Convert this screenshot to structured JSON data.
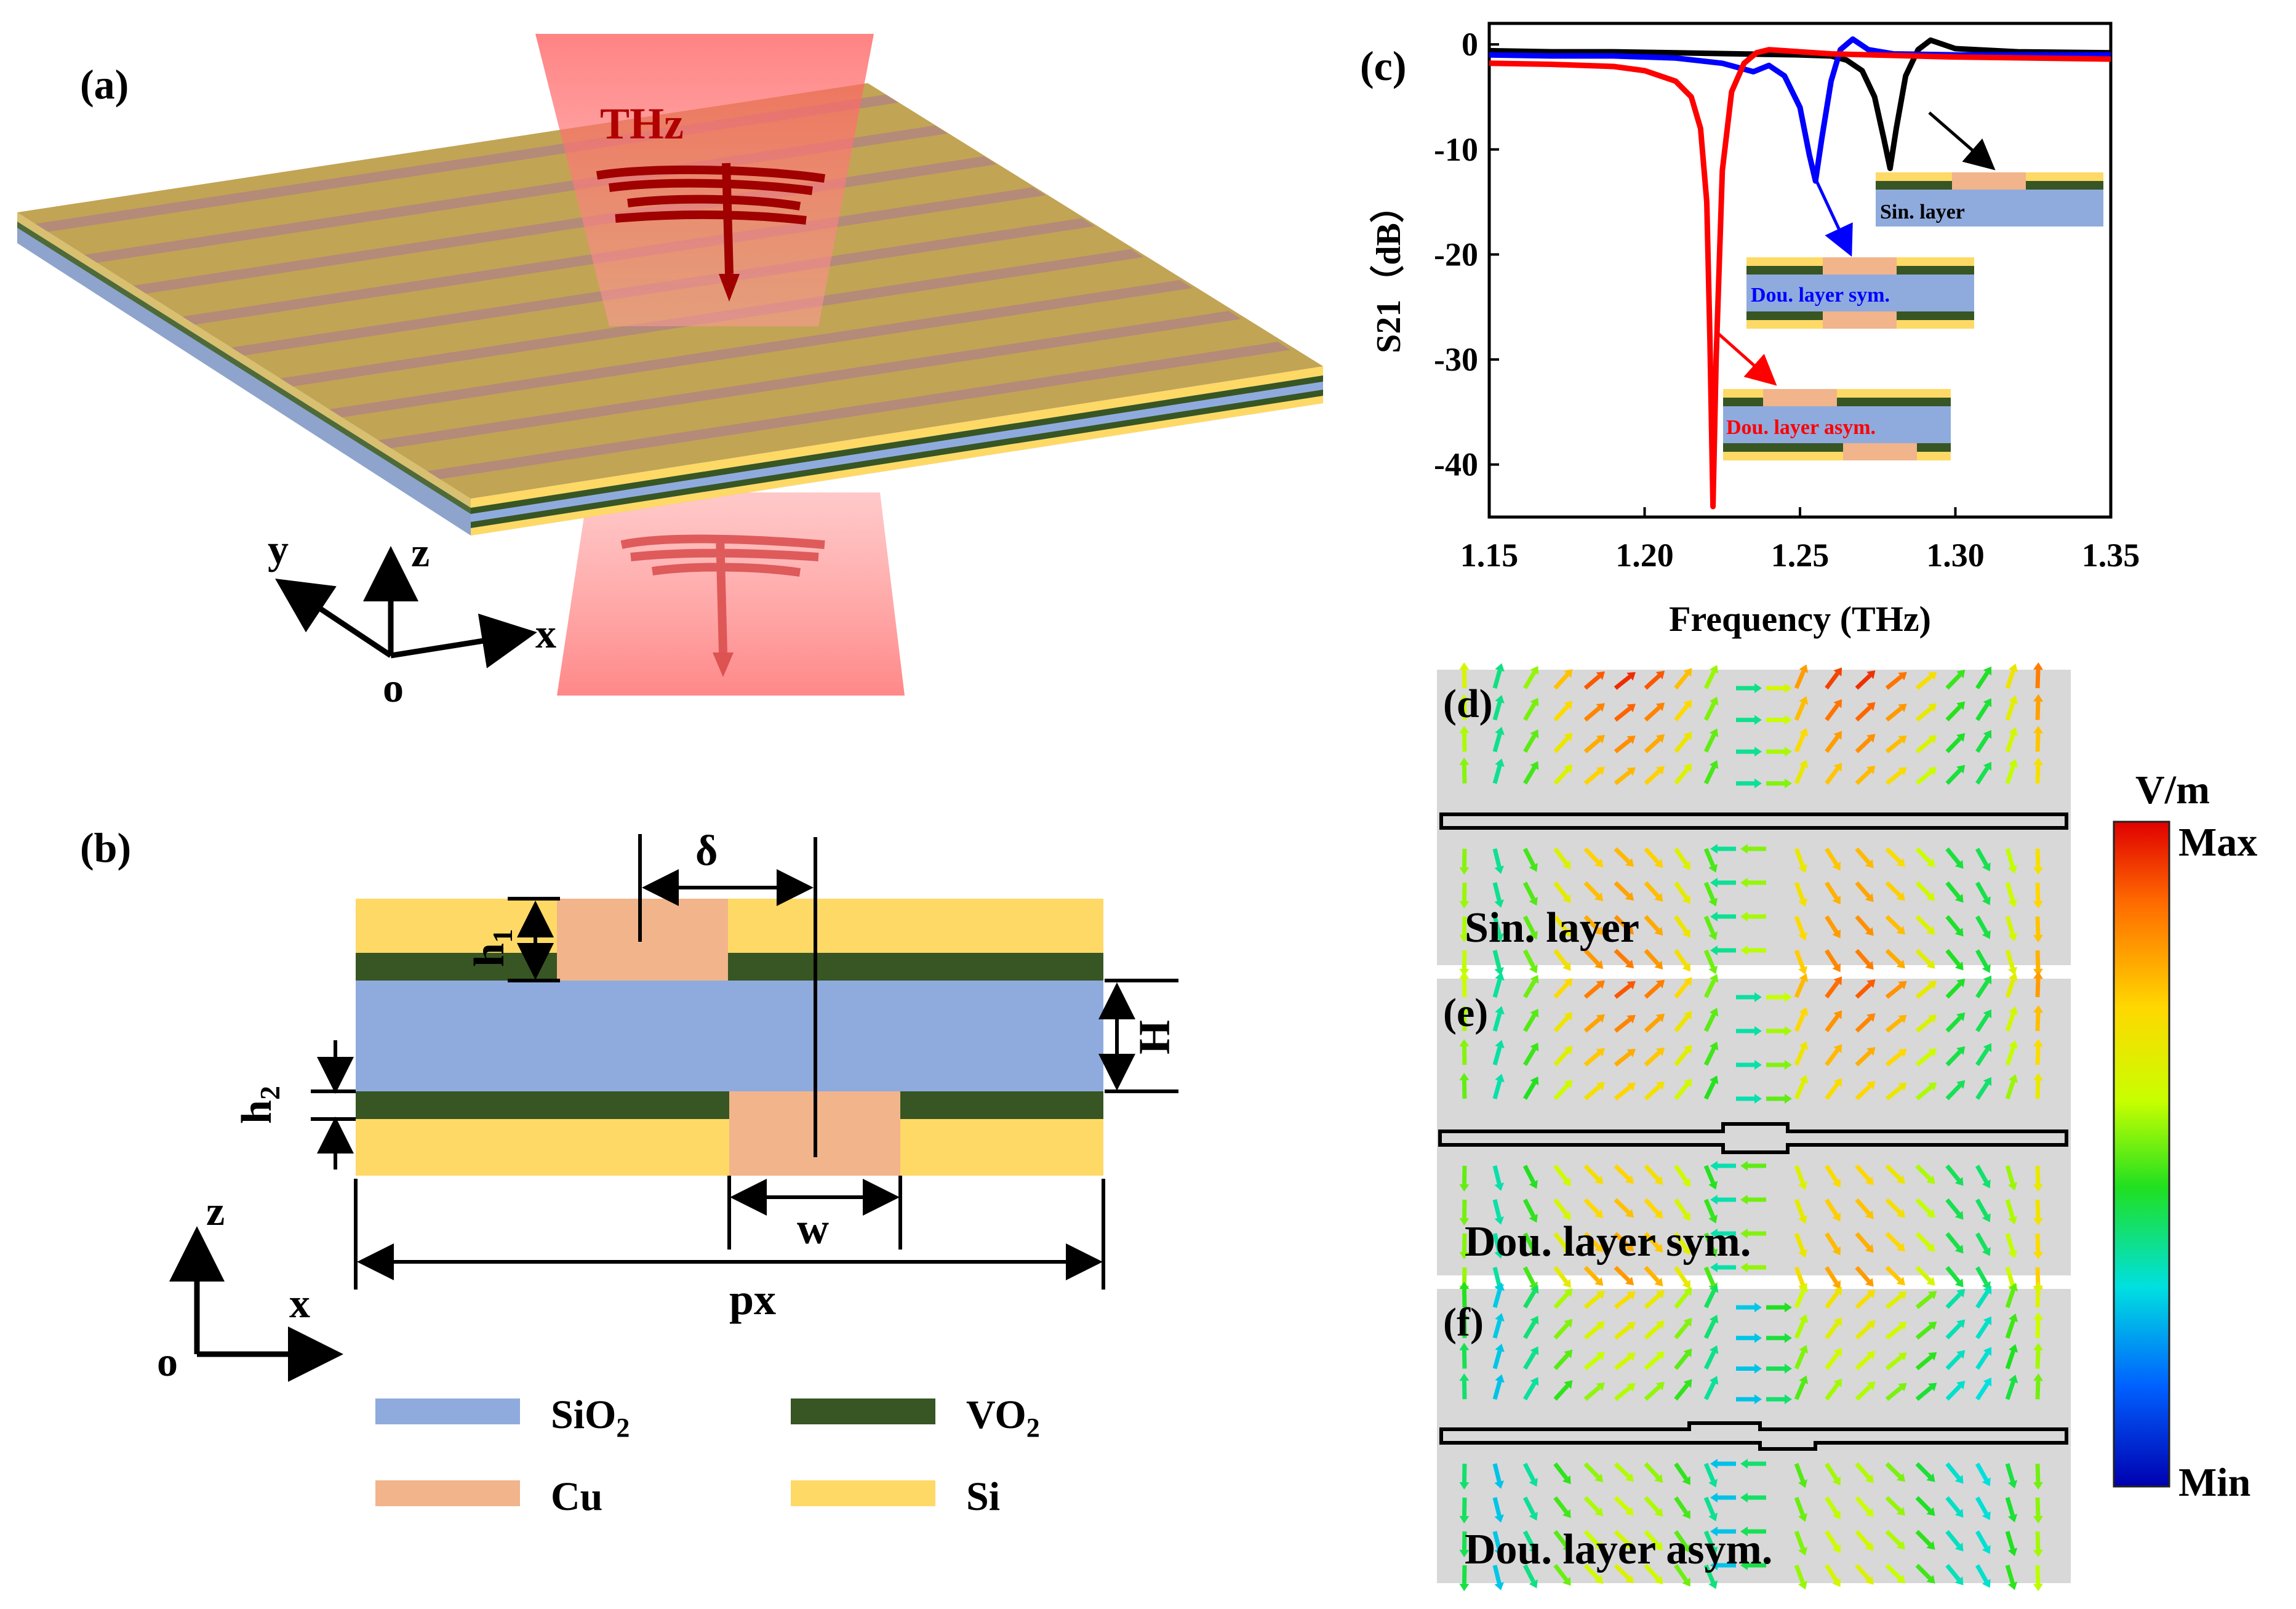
{
  "panels": {
    "a": {
      "label": "(a)",
      "beam_label": "THz",
      "axes": {
        "x": "x",
        "y": "y",
        "z": "z",
        "origin": "o"
      }
    },
    "b": {
      "label": "(b)",
      "dims": {
        "delta": "δ",
        "h1": "h",
        "h1_sub": "1",
        "h2": "h",
        "h2_sub": "2",
        "H": "H",
        "w": "w",
        "px": "px"
      },
      "axes": {
        "x": "x",
        "z": "z",
        "origin": "o"
      },
      "legend": [
        {
          "name": "SiO",
          "sub": "2",
          "color": "#8fabde"
        },
        {
          "name": "VO",
          "sub": "2",
          "color": "#375623"
        },
        {
          "name": "Cu",
          "sub": "",
          "color": "#f2b48a"
        },
        {
          "name": "Si",
          "sub": "",
          "color": "#ffd966"
        }
      ]
    },
    "c": {
      "label": "(c)",
      "insets": {
        "single": "Sin. layer",
        "sym": "Dou. layer sym.",
        "asym": "Dou. layer asym."
      }
    },
    "d": {
      "label": "(d)",
      "caption": "Sin. layer"
    },
    "e": {
      "label": "(e)",
      "caption": "Dou. layer sym."
    },
    "f": {
      "label": "(f)",
      "caption": "Dou. layer asym."
    },
    "colorbar": {
      "unit": "V/m",
      "max": "Max",
      "min": "Min"
    }
  },
  "chart_data": {
    "type": "line",
    "title": "",
    "xlabel": "Frequency (THz)",
    "ylabel": "S21（dB）",
    "xlim": [
      1.15,
      1.35
    ],
    "ylim": [
      -45,
      2
    ],
    "xticks": [
      "1.15",
      "1.20",
      "1.25",
      "1.30",
      "1.35"
    ],
    "yticks": [
      "0",
      "-10",
      "-20",
      "-30",
      "-40"
    ],
    "series": [
      {
        "name": "Sin. layer",
        "color": "#000000",
        "x": [
          1.15,
          1.17,
          1.19,
          1.21,
          1.23,
          1.25,
          1.26,
          1.265,
          1.27,
          1.274,
          1.277,
          1.279,
          1.281,
          1.284,
          1.288,
          1.292,
          1.3,
          1.32,
          1.35
        ],
        "y": [
          -0.6,
          -0.7,
          -0.7,
          -0.8,
          -0.9,
          -1.0,
          -1.1,
          -1.5,
          -2.5,
          -5.0,
          -9.0,
          -11.8,
          -8.0,
          -3.0,
          -0.5,
          0.4,
          -0.4,
          -0.7,
          -0.8
        ]
      },
      {
        "name": "Dou. layer sym.",
        "color": "#0000ff",
        "x": [
          1.15,
          1.17,
          1.19,
          1.21,
          1.225,
          1.235,
          1.24,
          1.245,
          1.25,
          1.253,
          1.255,
          1.257,
          1.26,
          1.263,
          1.267,
          1.272,
          1.28,
          1.3,
          1.35
        ],
        "y": [
          -1.0,
          -1.1,
          -1.1,
          -1.3,
          -1.8,
          -2.6,
          -2.0,
          -3.0,
          -6.0,
          -10.5,
          -13.0,
          -9.0,
          -3.5,
          -0.5,
          0.5,
          -0.5,
          -0.9,
          -1.0,
          -1.0
        ]
      },
      {
        "name": "Dou. layer asym.",
        "color": "#ff0000",
        "x": [
          1.15,
          1.17,
          1.19,
          1.2,
          1.21,
          1.215,
          1.218,
          1.22,
          1.221,
          1.222,
          1.223,
          1.225,
          1.228,
          1.232,
          1.236,
          1.24,
          1.26,
          1.3,
          1.35
        ],
        "y": [
          -1.8,
          -1.9,
          -2.1,
          -2.5,
          -3.5,
          -5.0,
          -8.0,
          -15.0,
          -28.0,
          -44.0,
          -30.0,
          -12.0,
          -4.5,
          -1.8,
          -0.8,
          -0.5,
          -0.9,
          -1.2,
          -1.4
        ]
      }
    ]
  }
}
